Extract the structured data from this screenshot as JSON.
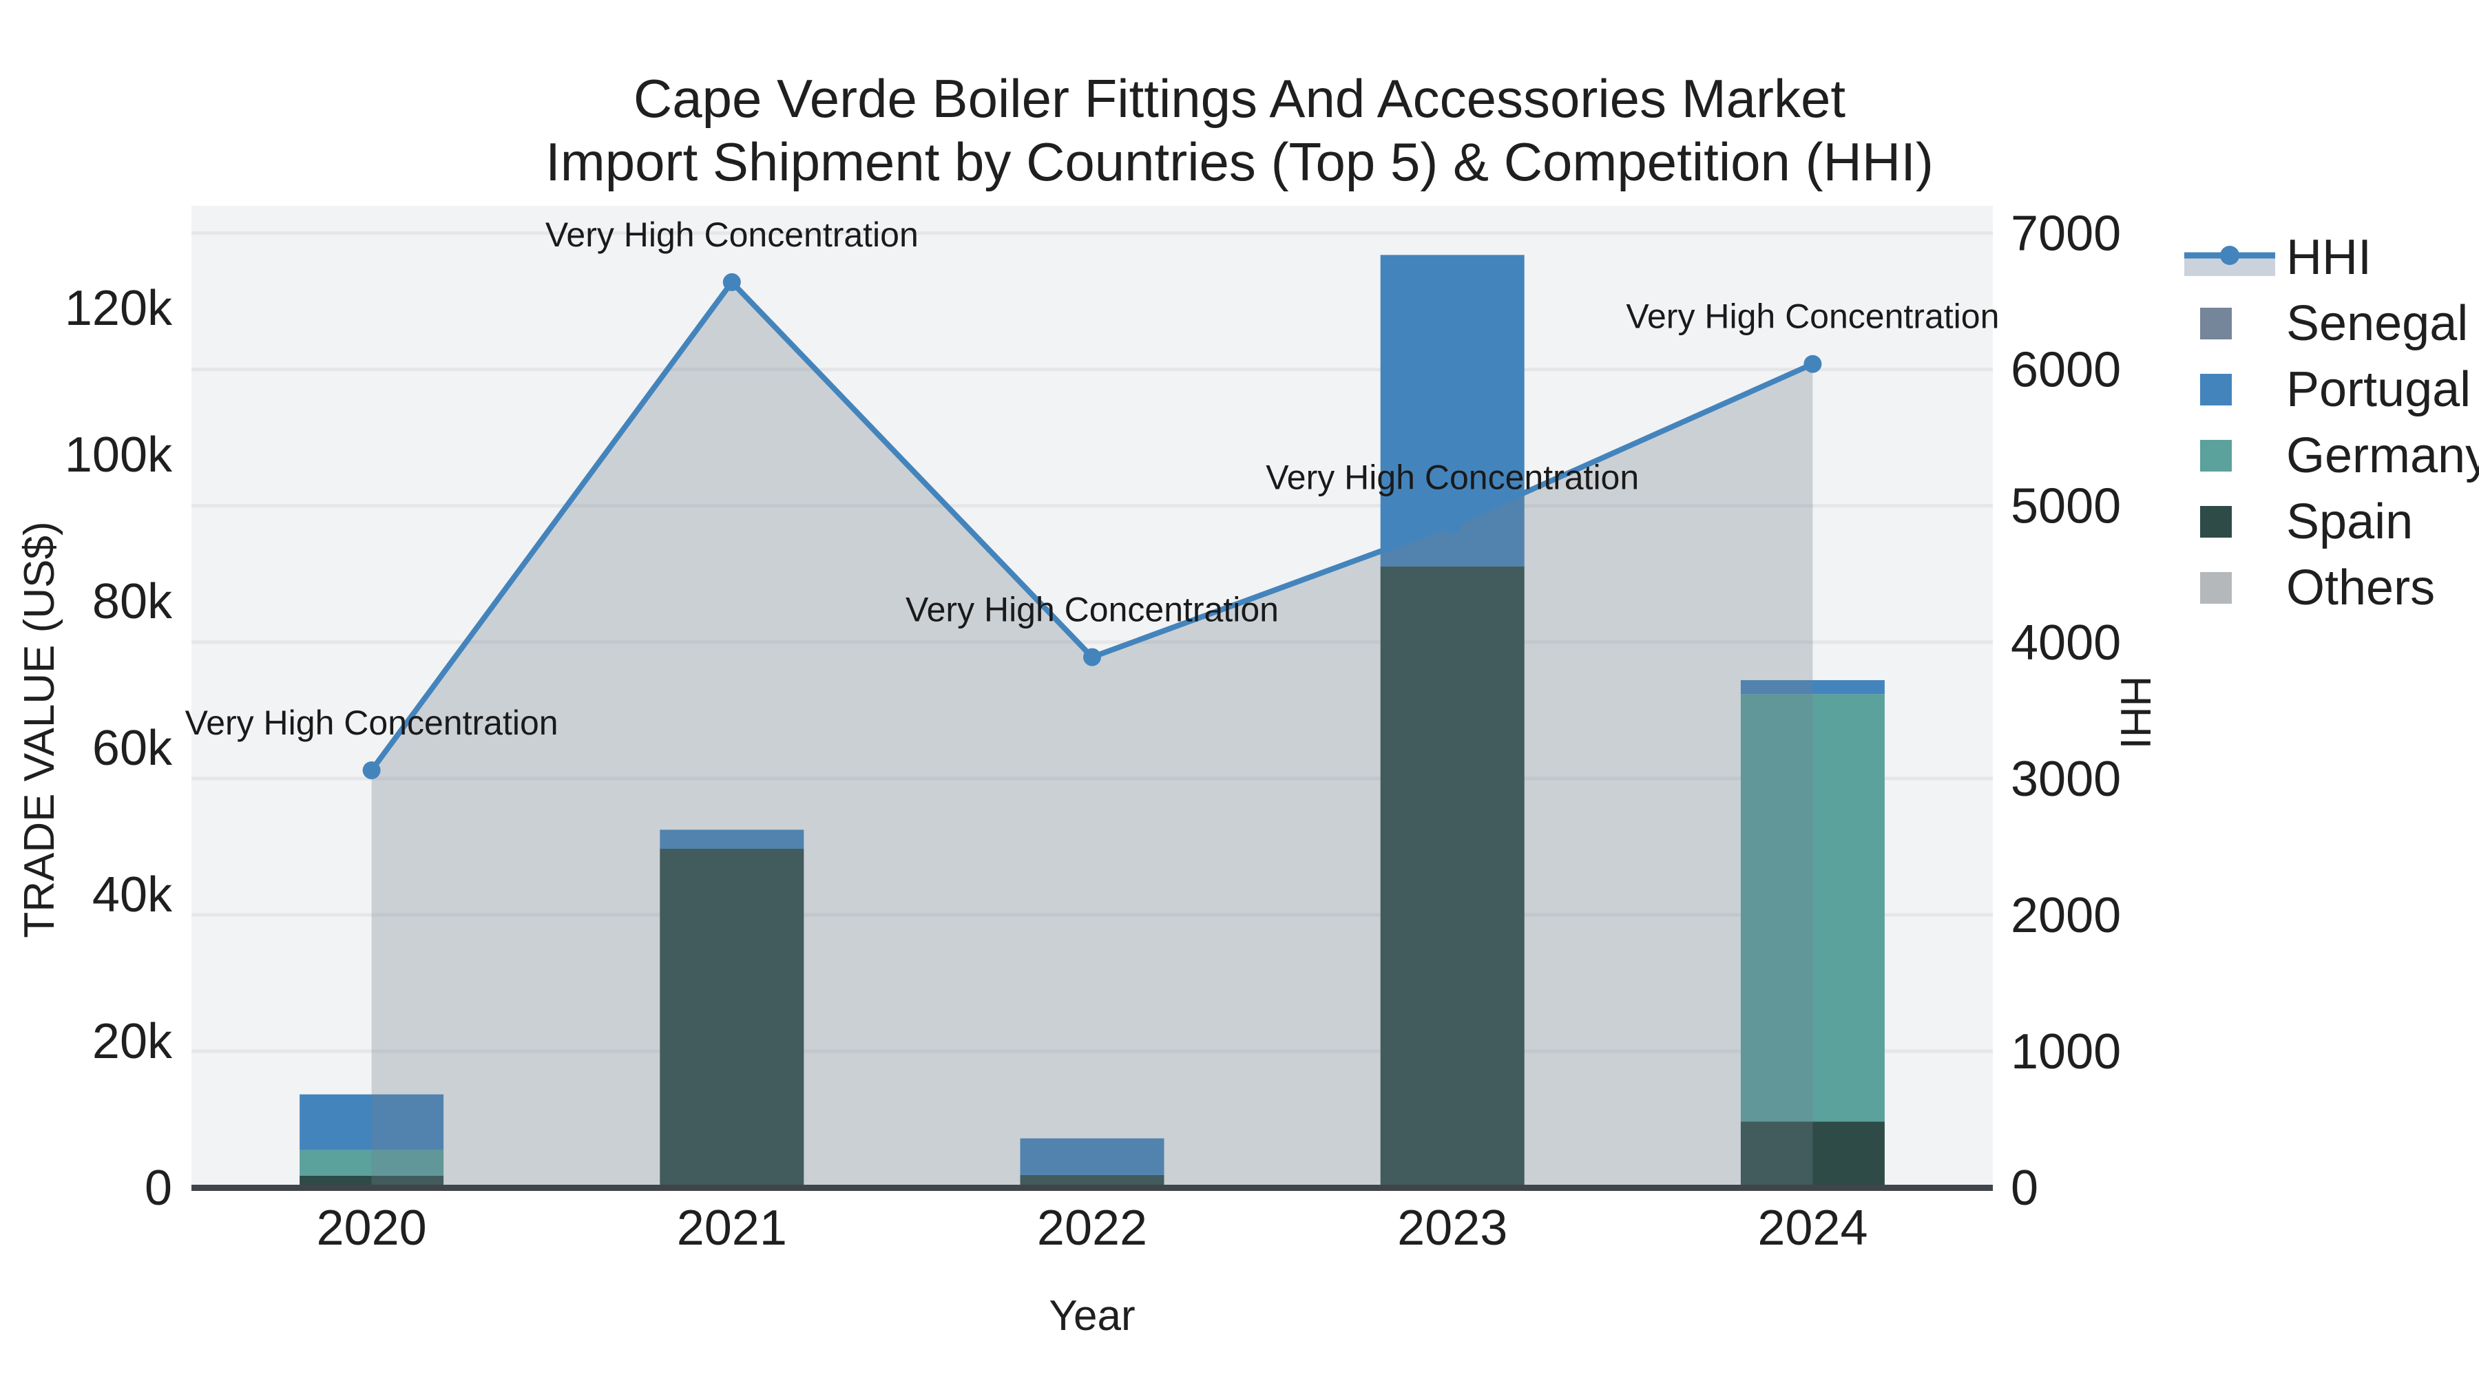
{
  "title": {
    "line1": "Cape Verde Boiler Fittings And Accessories Market",
    "line2": "Import Shipment by Countries (Top 5) & Competition (HHI)"
  },
  "legend": {
    "order": [
      "HHI",
      "Senegal",
      "Portugal",
      "Germany",
      "Spain",
      "Others"
    ]
  },
  "chart_data": {
    "type": "bar+line",
    "title": "Cape Verde Boiler Fittings And Accessories Market Import Shipment by Countries (Top 5) & Competition (HHI)",
    "xlabel": "Year",
    "ylabel_left": "TRADE VALUE (US$)",
    "ylabel_right": "HHI",
    "categories": [
      "2020",
      "2021",
      "2022",
      "2023",
      "2024"
    ],
    "bar_series": [
      {
        "name": "Spain",
        "color": "#2e4b47",
        "values": [
          1600,
          46200,
          1700,
          84700,
          9000
        ]
      },
      {
        "name": "Germany",
        "color": "#5ba19c",
        "values": [
          3500,
          0,
          0,
          0,
          58300
        ]
      },
      {
        "name": "Portugal",
        "color": "#4484bc",
        "values": [
          7600,
          2600,
          5000,
          42500,
          1900
        ]
      },
      {
        "name": "Senegal",
        "color": "#75859a",
        "values": [
          0,
          0,
          0,
          0,
          0
        ]
      },
      {
        "name": "Others",
        "color": "#b4b8bb",
        "values": [
          0,
          0,
          0,
          0,
          0
        ]
      }
    ],
    "line_series": {
      "name": "HHI",
      "color": "#4484bc",
      "values": [
        3060,
        6640,
        3890,
        4860,
        6040
      ]
    },
    "area_fill": "rgba(112,128,144,0.30)",
    "annotations": [
      "Very High Concentration",
      "Very High Concentration",
      "Very High Concentration",
      "Very High Concentration",
      "Very High Concentration"
    ],
    "axis_left": {
      "range": [
        0,
        133900
      ],
      "ticks": [
        {
          "v": 0,
          "label": "0"
        },
        {
          "v": 20000,
          "label": "20k"
        },
        {
          "v": 40000,
          "label": "40k"
        },
        {
          "v": 60000,
          "label": "60k"
        },
        {
          "v": 80000,
          "label": "80k"
        },
        {
          "v": 100000,
          "label": "100k"
        },
        {
          "v": 120000,
          "label": "120k"
        }
      ]
    },
    "axis_right": {
      "range": [
        0,
        7200
      ],
      "ticks": [
        {
          "v": 0,
          "label": "0"
        },
        {
          "v": 1000,
          "label": "1000"
        },
        {
          "v": 2000,
          "label": "2000"
        },
        {
          "v": 3000,
          "label": "3000"
        },
        {
          "v": 4000,
          "label": "4000"
        },
        {
          "v": 5000,
          "label": "5000"
        },
        {
          "v": 6000,
          "label": "6000"
        },
        {
          "v": 7000,
          "label": "7000"
        }
      ]
    },
    "grid": true,
    "legend_position": "right"
  },
  "colors": {
    "plot_bg": "#f2f3f4",
    "grid": "#e4e6e8",
    "axis_line": "#3f454b",
    "text": "#1f1f1f",
    "legend_band": "#ccd2dc"
  }
}
